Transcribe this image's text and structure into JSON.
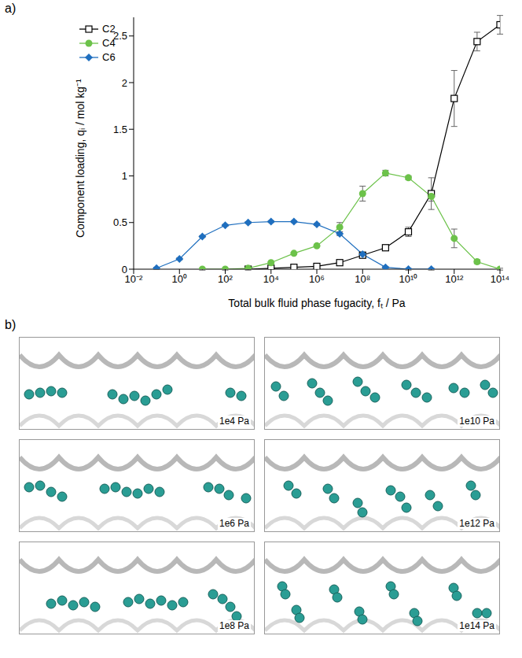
{
  "chart_data": {
    "type": "line",
    "panel_label": "a)",
    "xlabel": "Total bulk fluid phase fugacity, fₜ / Pa",
    "ylabel": "Component loading, qᵢ / mol kg⁻¹",
    "log": "x",
    "grid": false,
    "legend": "upper left",
    "xlim": [
      0.01,
      100000000000000
    ],
    "xticks": [
      {
        "value": 0.01,
        "label": "10⁻²"
      },
      {
        "value": 1,
        "label": "10⁰"
      },
      {
        "value": 100,
        "label": "10²"
      },
      {
        "value": 10000,
        "label": "10⁴"
      },
      {
        "value": 1000000,
        "label": "10⁶"
      },
      {
        "value": 100000000,
        "label": "10⁸"
      },
      {
        "value": 10000000000,
        "label": "10¹⁰"
      },
      {
        "value": 1000000000000,
        "label": "10¹²"
      },
      {
        "value": 100000000000000,
        "label": "10¹⁴"
      }
    ],
    "ylim": [
      0,
      2.7
    ],
    "yticks": [
      0,
      0.5,
      1,
      1.5,
      2,
      2.5
    ],
    "series": [
      {
        "name": "C2",
        "color": "#000000",
        "marker": "square",
        "x": [
          1000,
          10000,
          100000,
          1000000,
          10000000,
          100000000,
          1000000000,
          10000000000,
          100000000000,
          1000000000000,
          10000000000000,
          100000000000000
        ],
        "values": [
          0.0,
          0.01,
          0.02,
          0.03,
          0.07,
          0.15,
          0.23,
          0.4,
          0.81,
          1.83,
          2.44,
          2.62
        ],
        "errors": [
          0.01,
          0.01,
          0.01,
          0.01,
          0.01,
          0.02,
          0.02,
          0.05,
          0.17,
          0.3,
          0.1,
          0.1
        ]
      },
      {
        "name": "C4",
        "color": "#6cc24a",
        "marker": "circle",
        "x": [
          10,
          100,
          1000,
          10000,
          100000,
          1000000,
          10000000,
          100000000,
          1000000000,
          10000000000,
          100000000000,
          1000000000000,
          10000000000000,
          100000000000000
        ],
        "values": [
          0.0,
          0.0,
          0.01,
          0.07,
          0.17,
          0.25,
          0.45,
          0.81,
          1.03,
          0.98,
          0.78,
          0.33,
          0.08,
          0.0
        ],
        "errors": [
          0.01,
          0.01,
          0.01,
          0.01,
          0.01,
          0.01,
          0.05,
          0.08,
          0.03,
          0.02,
          0.05,
          0.1,
          0.02,
          0.01
        ]
      },
      {
        "name": "C6",
        "color": "#1f6fbf",
        "marker": "diamond",
        "x": [
          0.1,
          1,
          10,
          100,
          1000,
          10000,
          100000,
          1000000,
          10000000,
          100000000,
          1000000000,
          10000000000,
          100000000000
        ],
        "values": [
          0.01,
          0.11,
          0.35,
          0.47,
          0.5,
          0.51,
          0.51,
          0.48,
          0.38,
          0.16,
          0.02,
          0.0,
          0.0
        ],
        "errors": [
          0.01,
          0.01,
          0.01,
          0.01,
          0.01,
          0.01,
          0.01,
          0.01,
          0.02,
          0.02,
          0.01,
          0.01,
          0.01
        ]
      }
    ]
  },
  "panel_b": {
    "panel_label": "b)",
    "snapshots": [
      {
        "label": "1e4 Pa"
      },
      {
        "label": "1e10 Pa"
      },
      {
        "label": "1e6 Pa"
      },
      {
        "label": "1e12 Pa"
      },
      {
        "label": "1e8 Pa"
      },
      {
        "label": "1e14 Pa"
      }
    ]
  }
}
